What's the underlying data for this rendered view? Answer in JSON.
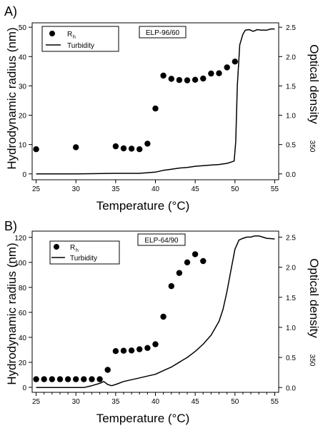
{
  "chart_data": [
    {
      "type": "scatter",
      "panel_label": "A)",
      "inset_label": "ELP-96/60",
      "xlabel": "Temperature (°C)",
      "ylabel_left": "Hydrodynamic radius (nm)",
      "ylabel_right": "Optical density",
      "ylabel_right_sub": "350",
      "xlim": [
        24.5,
        55.5
      ],
      "ylim_left": [
        -2,
        51.5
      ],
      "ylim_right": [
        -0.1,
        2.575
      ],
      "xticks": [
        25,
        30,
        35,
        40,
        45,
        50,
        55
      ],
      "yticks_left": [
        0,
        10,
        20,
        30,
        40,
        50
      ],
      "yticks_right": [
        0.0,
        0.5,
        1.0,
        1.5,
        2.0,
        2.5
      ],
      "ytick_labels_right": [
        "0.0",
        "0.5",
        "1.0",
        "1.5",
        "2.0",
        "2.5"
      ],
      "legend": {
        "placement": "top-left",
        "items": [
          {
            "marker": "dot",
            "label": "R",
            "sub": "h"
          },
          {
            "marker": "line",
            "label": "Turbidity"
          }
        ]
      },
      "series": [
        {
          "name": "Rh",
          "axis": "left",
          "style": "markers",
          "x": [
            25,
            30,
            35,
            36,
            37,
            38,
            39,
            40,
            41,
            42,
            43,
            44,
            45,
            46,
            47,
            48,
            49,
            50
          ],
          "y": [
            8.4,
            9.1,
            9.4,
            8.7,
            8.6,
            8.4,
            10.3,
            22.3,
            33.5,
            32.4,
            32.0,
            31.9,
            32.1,
            32.5,
            34.2,
            34.3,
            36.3,
            38.3
          ]
        },
        {
          "name": "Turbidity",
          "axis": "right",
          "style": "line",
          "x": [
            25,
            30,
            35,
            38,
            39,
            40,
            41,
            42,
            43,
            44,
            45,
            46,
            47,
            48,
            49,
            49.5,
            49.9,
            50.1,
            50.3,
            50.6,
            51,
            51.3,
            51.8,
            52.3,
            52.8,
            53.3,
            54,
            54.5,
            55
          ],
          "y": [
            0.0,
            0.0,
            0.01,
            0.01,
            0.02,
            0.03,
            0.06,
            0.08,
            0.1,
            0.11,
            0.13,
            0.14,
            0.15,
            0.16,
            0.18,
            0.2,
            0.22,
            0.55,
            1.5,
            2.2,
            2.38,
            2.45,
            2.46,
            2.43,
            2.46,
            2.45,
            2.45,
            2.47,
            2.47
          ]
        }
      ]
    },
    {
      "type": "scatter",
      "panel_label": "B)",
      "inset_label": "ELP-64/90",
      "xlabel": "Temperature (°C)",
      "ylabel_left": "Hydrodynamic radius (nm)",
      "ylabel_right": "Optical density",
      "ylabel_right_sub": "350",
      "xlim": [
        24.5,
        55.5
      ],
      "ylim_left": [
        -4,
        125
      ],
      "ylim_right": [
        -0.08,
        2.6
      ],
      "xticks": [
        25,
        26,
        27,
        28,
        29,
        30,
        31,
        32,
        33,
        34,
        35,
        36,
        37,
        38,
        39,
        40,
        41,
        42,
        43,
        44,
        45,
        46,
        47,
        48,
        49,
        50,
        51,
        52,
        53,
        54,
        55
      ],
      "xtick_labels": [
        "25",
        "",
        "",
        "",
        "",
        "30",
        "",
        "",
        "",
        "",
        "35",
        "",
        "",
        "",
        "",
        "40",
        "",
        "",
        "",
        "",
        "45",
        "",
        "",
        "",
        "",
        "50",
        "",
        "",
        "",
        "",
        "55"
      ],
      "yticks_left": [
        0,
        20,
        40,
        60,
        80,
        100,
        120
      ],
      "yticks_right": [
        0.0,
        0.5,
        1.0,
        1.5,
        2.0,
        2.5
      ],
      "ytick_labels_right": [
        "0.0",
        "0.5",
        "1.0",
        "1.5",
        "2.0",
        "2.5"
      ],
      "legend": {
        "placement": "top-left",
        "items": [
          {
            "marker": "dot",
            "label": "R",
            "sub": "h"
          },
          {
            "marker": "line",
            "label": "Turbidity"
          }
        ]
      },
      "series": [
        {
          "name": "Rh",
          "axis": "left",
          "style": "markers",
          "x": [
            25,
            26,
            27,
            28,
            29,
            30,
            31,
            32,
            33,
            34,
            35,
            36,
            37,
            38,
            39,
            40,
            41,
            42,
            43,
            44,
            45,
            46
          ],
          "y": [
            6.5,
            6.5,
            6.5,
            6.5,
            6.5,
            6.5,
            6.5,
            6.5,
            6.5,
            14.0,
            29.0,
            29.3,
            29.5,
            30.5,
            31.5,
            34.5,
            56.5,
            81.0,
            91.5,
            100.0,
            106.5,
            101.0
          ],
          "note": "values read from left axis gridlines"
        },
        {
          "name": "Turbidity",
          "axis": "right",
          "style": "line",
          "x": [
            25,
            27,
            29,
            31,
            32,
            33,
            33.5,
            34,
            34.5,
            35,
            36,
            37,
            38,
            39,
            40,
            41,
            42,
            43,
            44,
            45,
            46,
            47,
            48,
            48.5,
            49,
            49.5,
            50,
            50.5,
            51,
            51.5,
            52,
            52.5,
            53,
            53.5,
            54,
            55
          ],
          "y": [
            0.0,
            0.0,
            0.0,
            0.0,
            0.03,
            0.07,
            0.1,
            0.05,
            0.03,
            0.05,
            0.1,
            0.13,
            0.16,
            0.19,
            0.22,
            0.28,
            0.34,
            0.42,
            0.5,
            0.6,
            0.72,
            0.87,
            1.1,
            1.3,
            1.6,
            1.95,
            2.3,
            2.45,
            2.48,
            2.5,
            2.5,
            2.52,
            2.52,
            2.5,
            2.48,
            2.47
          ]
        }
      ]
    }
  ]
}
